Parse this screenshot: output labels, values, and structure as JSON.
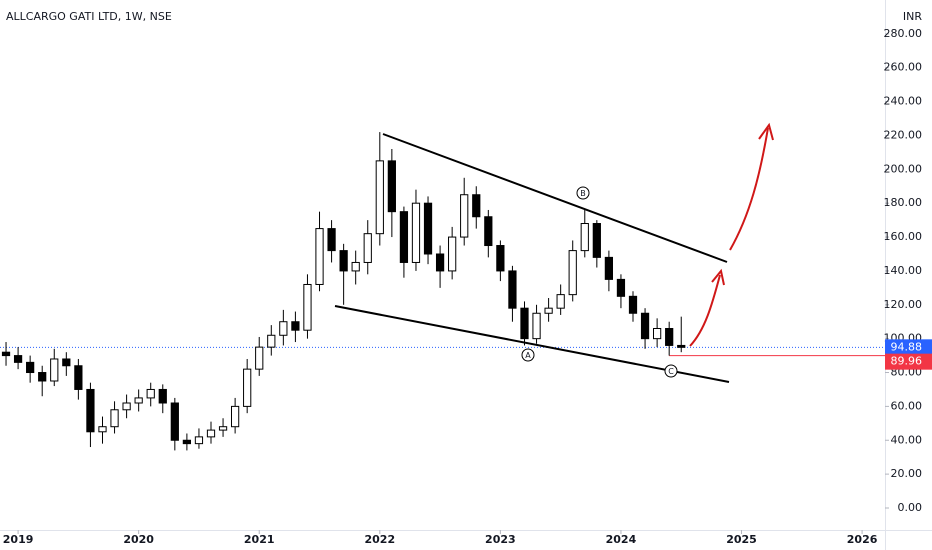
{
  "chart_data": {
    "type": "candlestick",
    "title": "ALLCARGO GATI LTD, 1W, NSE",
    "currency": "INR",
    "x": [
      2018.9,
      2019.0,
      2019.1,
      2019.2,
      2019.3,
      2019.4,
      2019.5,
      2019.6,
      2019.7,
      2019.8,
      2019.9,
      2020.0,
      2020.1,
      2020.2,
      2020.3,
      2020.4,
      2020.5,
      2020.6,
      2020.7,
      2020.8,
      2020.9,
      2021.0,
      2021.1,
      2021.2,
      2021.3,
      2021.4,
      2021.5,
      2021.6,
      2021.7,
      2021.8,
      2021.9,
      2022.0,
      2022.1,
      2022.2,
      2022.3,
      2022.4,
      2022.5,
      2022.6,
      2022.7,
      2022.8,
      2022.9,
      2023.0,
      2023.1,
      2023.2,
      2023.3,
      2023.4,
      2023.5,
      2023.6,
      2023.7,
      2023.8,
      2023.9,
      2024.0,
      2024.1,
      2024.2,
      2024.3,
      2024.4,
      2024.5
    ],
    "open": [
      92,
      90,
      86,
      80,
      75,
      88,
      84,
      70,
      45,
      48,
      58,
      62,
      65,
      70,
      62,
      40,
      38,
      42,
      46,
      48,
      60,
      82,
      95,
      102,
      110,
      105,
      132,
      165,
      152,
      140,
      145,
      162,
      205,
      175,
      145,
      180,
      150,
      140,
      160,
      185,
      172,
      155,
      140,
      118,
      100,
      115,
      118,
      126,
      152,
      168,
      148,
      135,
      125,
      115,
      100,
      106,
      96
    ],
    "high": [
      98,
      95,
      90,
      84,
      94,
      92,
      88,
      74,
      54,
      63,
      67,
      70,
      74,
      73,
      65,
      44,
      47,
      51,
      53,
      65,
      88,
      101,
      108,
      117,
      116,
      138,
      175,
      170,
      156,
      152,
      170,
      222,
      212,
      178,
      188,
      184,
      155,
      166,
      195,
      190,
      176,
      158,
      143,
      122,
      120,
      124,
      132,
      158,
      176,
      170,
      152,
      138,
      128,
      118,
      112,
      110,
      113
    ],
    "low": [
      84,
      82,
      74,
      66,
      72,
      78,
      64,
      36,
      38,
      44,
      53,
      57,
      60,
      56,
      34,
      34,
      35,
      38,
      42,
      44,
      56,
      78,
      90,
      96,
      98,
      100,
      128,
      145,
      120,
      132,
      138,
      155,
      160,
      136,
      140,
      144,
      130,
      135,
      155,
      165,
      148,
      134,
      110,
      96,
      97,
      110,
      114,
      122,
      148,
      142,
      128,
      118,
      110,
      94,
      95,
      90,
      92
    ],
    "close": [
      90,
      86,
      80,
      75,
      88,
      84,
      70,
      45,
      48,
      58,
      62,
      65,
      70,
      62,
      40,
      38,
      42,
      46,
      48,
      60,
      82,
      95,
      102,
      110,
      105,
      132,
      165,
      152,
      140,
      145,
      162,
      205,
      175,
      145,
      180,
      150,
      140,
      160,
      185,
      172,
      155,
      140,
      118,
      100,
      115,
      118,
      126,
      152,
      168,
      148,
      135,
      125,
      115,
      100,
      106,
      96,
      94.88
    ],
    "up_color": "#ffffff",
    "down_color": "#000000",
    "last_price": 94.88,
    "last_price_color": "#2962ff",
    "marked_low": 89.96,
    "marked_low_color": "#f23645",
    "annotations": [
      "A",
      "B",
      "C"
    ],
    "xlim": [
      2018.85,
      2026.19
    ],
    "xticks": [
      2019,
      2020,
      2021,
      2022,
      2023,
      2024,
      2025,
      2026
    ],
    "ylim": [
      -13,
      300
    ],
    "yticks": [
      {
        "value": 0,
        "label": "0.00"
      },
      {
        "value": 20,
        "label": "20.00"
      },
      {
        "value": 40,
        "label": "40.00"
      },
      {
        "value": 60,
        "label": "60.00"
      },
      {
        "value": 80,
        "label": "80.00"
      },
      {
        "value": 100,
        "label": "100.00"
      },
      {
        "value": 120,
        "label": "120.00"
      },
      {
        "value": 140,
        "label": "140.00"
      },
      {
        "value": 160,
        "label": "160.00"
      },
      {
        "value": 180,
        "label": "180.00"
      },
      {
        "value": 200,
        "label": "200.00"
      },
      {
        "value": 220,
        "label": "220.00"
      },
      {
        "value": 240,
        "label": "240.00"
      },
      {
        "value": 260,
        "label": "260.00"
      },
      {
        "value": 280,
        "label": "280.00"
      }
    ],
    "grid": false
  }
}
